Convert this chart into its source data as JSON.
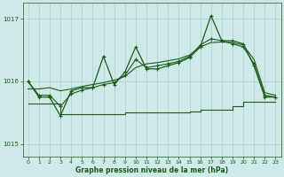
{
  "title": "Graphe pression niveau de la mer (hPa)",
  "background_color": "#cfe8e8",
  "grid_color": "#aecece",
  "line_color": "#1a5c1a",
  "xlim": [
    -0.5,
    23.5
  ],
  "ylim": [
    1014.8,
    1017.25
  ],
  "yticks": [
    1015,
    1016,
    1017
  ],
  "xticks": [
    0,
    1,
    2,
    3,
    4,
    5,
    6,
    7,
    8,
    9,
    10,
    11,
    12,
    13,
    14,
    15,
    16,
    17,
    18,
    19,
    20,
    21,
    22,
    23
  ],
  "series_jagged_x": [
    0,
    1,
    2,
    3,
    4,
    5,
    6,
    7,
    8,
    9,
    10,
    11,
    12,
    13,
    14,
    15,
    16,
    17,
    18,
    19,
    20,
    21,
    22,
    23
  ],
  "series_jagged_y": [
    1016.0,
    1015.75,
    1015.75,
    1015.45,
    1015.85,
    1015.9,
    1015.9,
    1016.4,
    1015.95,
    1016.15,
    1016.55,
    1016.2,
    1016.2,
    1016.25,
    1016.3,
    1016.38,
    1016.55,
    1017.05,
    1016.65,
    1016.65,
    1016.6,
    1016.25,
    1015.75,
    1015.75
  ],
  "series_smooth_x": [
    0,
    1,
    2,
    3,
    4,
    5,
    6,
    7,
    8,
    9,
    10,
    11,
    12,
    13,
    14,
    15,
    16,
    17,
    18,
    19,
    20,
    21,
    22,
    23
  ],
  "series_smooth_y": [
    1016.0,
    1015.78,
    1015.78,
    1015.6,
    1015.8,
    1015.86,
    1015.9,
    1015.95,
    1015.98,
    1016.1,
    1016.35,
    1016.22,
    1016.25,
    1016.28,
    1016.32,
    1016.4,
    1016.58,
    1016.68,
    1016.65,
    1016.6,
    1016.55,
    1016.28,
    1015.78,
    1015.75
  ],
  "series_linear_x": [
    0,
    1,
    2,
    3,
    4,
    5,
    6,
    7,
    8,
    9,
    10,
    11,
    12,
    13,
    14,
    15,
    16,
    17,
    18,
    19,
    20,
    21,
    22,
    23
  ],
  "series_linear_y": [
    1015.88,
    1015.88,
    1015.9,
    1015.85,
    1015.88,
    1015.92,
    1015.95,
    1015.98,
    1016.02,
    1016.08,
    1016.22,
    1016.28,
    1016.3,
    1016.33,
    1016.36,
    1016.42,
    1016.55,
    1016.62,
    1016.63,
    1016.62,
    1016.58,
    1016.35,
    1015.82,
    1015.78
  ],
  "series_step_x": [
    0,
    1,
    2,
    3,
    4,
    5,
    6,
    7,
    8,
    9,
    10,
    11,
    12,
    13,
    14,
    15,
    16,
    17,
    18,
    19,
    20,
    21,
    22,
    23
  ],
  "series_step_y": [
    1015.65,
    1015.65,
    1015.65,
    1015.48,
    1015.48,
    1015.48,
    1015.48,
    1015.48,
    1015.48,
    1015.5,
    1015.5,
    1015.5,
    1015.5,
    1015.5,
    1015.5,
    1015.52,
    1015.55,
    1015.55,
    1015.55,
    1015.6,
    1015.68,
    1015.68,
    1015.68,
    1015.68
  ]
}
